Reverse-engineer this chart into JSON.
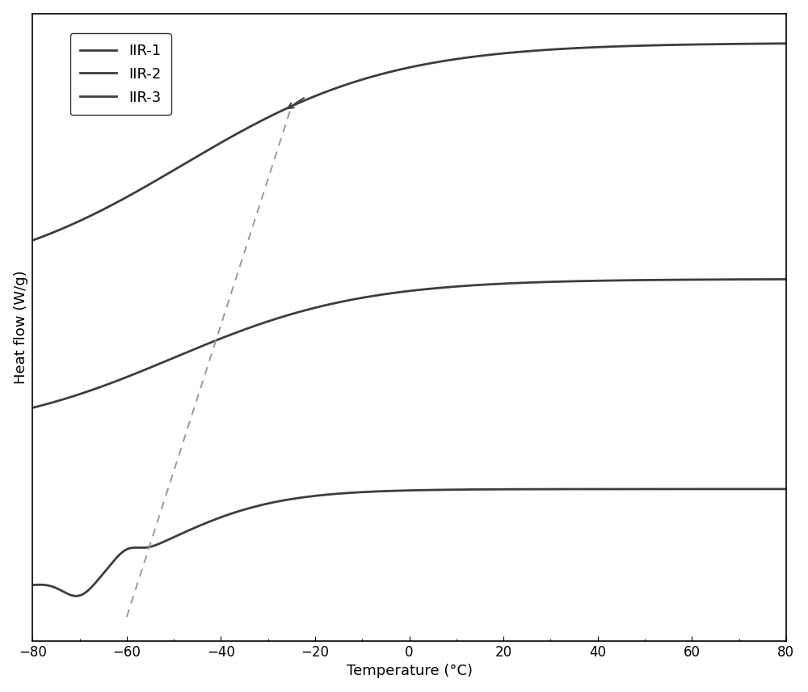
{
  "title": "",
  "xlabel": "Temperature (°C)",
  "ylabel": "Heat flow (W/g)",
  "xlim": [
    -80,
    80
  ],
  "xticks": [
    -80,
    -60,
    -40,
    -20,
    0,
    20,
    40,
    60,
    80
  ],
  "line_color": "#3d3d3d",
  "line_width": 2.0,
  "legend_labels": [
    "IIR-1",
    "IIR-2",
    "IIR-3"
  ],
  "dashed_color": "#999999",
  "background_color": "#ffffff",
  "legend_fontsize": 13,
  "axis_fontsize": 13,
  "tick_fontsize": 12
}
